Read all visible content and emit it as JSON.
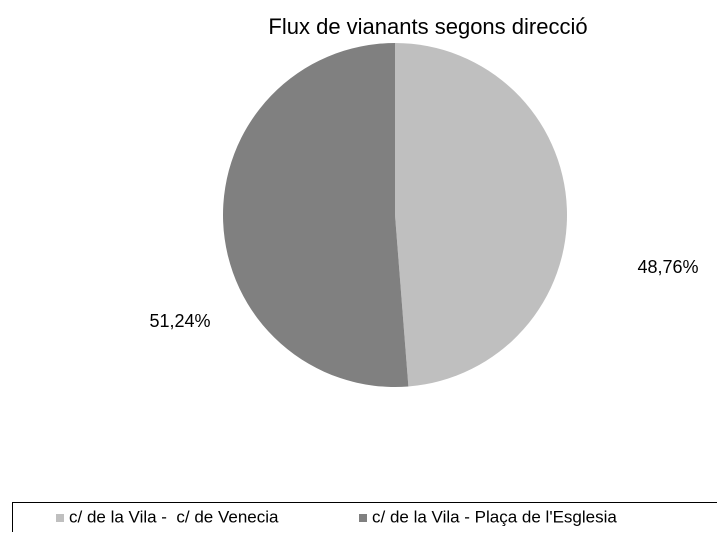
{
  "chart_data": {
    "type": "pie",
    "title": "Flux de vianants segons direcció",
    "categories": [
      "c/ de la Vila -  c/ de Venecia",
      "c/ de la Vila - Plaça de l'Esglesia"
    ],
    "values": [
      48.76,
      51.24
    ],
    "value_labels": [
      "48,76%",
      "51,24%"
    ],
    "colors": [
      "#bfbfbf",
      "#808080"
    ],
    "legend": "bottom"
  }
}
